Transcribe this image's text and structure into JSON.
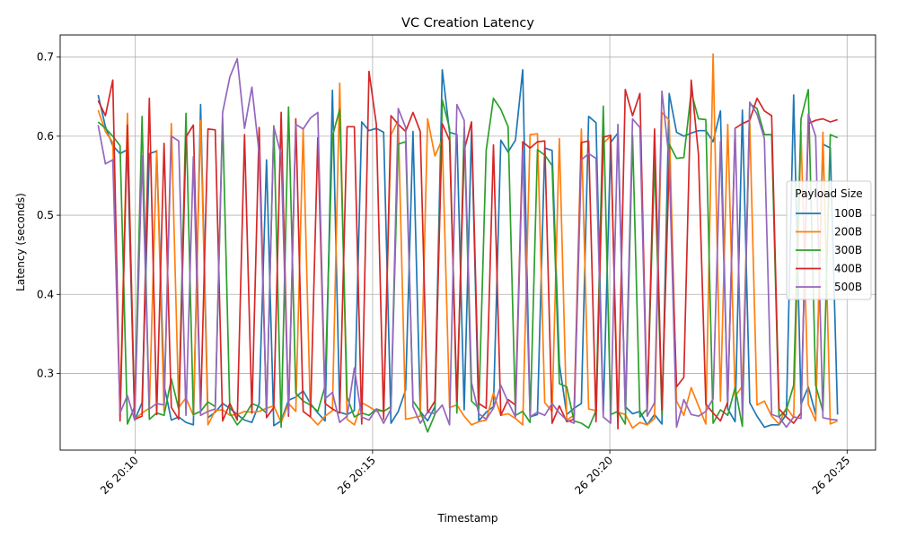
{
  "chart_data": {
    "type": "line",
    "title": "VC Creation Latency",
    "xlabel": "Timestamp",
    "ylabel": "Latency (seconds)",
    "x_start": "26 20:09:13",
    "x_end": "26 20:24:48",
    "xlim": [
      "26 20:08:25",
      "26 20:25:36"
    ],
    "ylim": [
      0.203,
      0.728
    ],
    "x_ticks": [
      {
        "label": "26 20:10",
        "time": "26 20:10:00"
      },
      {
        "label": "26 20:15",
        "time": "26 20:15:00"
      },
      {
        "label": "26 20:20",
        "time": "26 20:20:00"
      },
      {
        "label": "26 20:25",
        "time": "26 20:25:00"
      }
    ],
    "y_ticks": [
      0.3,
      0.4,
      0.5,
      0.6,
      0.7
    ],
    "grid": true,
    "legend": {
      "title": "Payload Size",
      "placement": "right"
    },
    "series": [
      {
        "name": "100B",
        "color": "#1f77b4",
        "values": [
          0.652,
          0.612,
          0.588,
          0.578,
          0.583,
          0.241,
          0.263,
          0.578,
          0.581,
          0.285,
          0.241,
          0.245,
          0.238,
          0.235,
          0.64,
          0.244,
          0.251,
          0.262,
          0.256,
          0.248,
          0.241,
          0.238,
          0.262,
          0.57,
          0.234,
          0.24,
          0.266,
          0.27,
          0.278,
          0.262,
          0.25,
          0.24,
          0.658,
          0.251,
          0.248,
          0.253,
          0.618,
          0.607,
          0.61,
          0.605,
          0.237,
          0.252,
          0.279,
          0.606,
          0.252,
          0.24,
          0.258,
          0.684,
          0.605,
          0.602,
          0.254,
          0.609,
          0.24,
          0.251,
          0.258,
          0.595,
          0.58,
          0.595,
          0.684,
          0.245,
          0.248,
          0.585,
          0.582,
          0.312,
          0.248,
          0.256,
          0.262,
          0.625,
          0.617,
          0.248,
          0.592,
          0.604,
          0.258,
          0.249,
          0.252,
          0.235,
          0.248,
          0.236,
          0.654,
          0.605,
          0.6,
          0.604,
          0.607,
          0.607,
          0.593,
          0.632,
          0.255,
          0.239,
          0.633,
          0.263,
          0.246,
          0.232,
          0.235,
          0.235,
          0.248,
          0.652,
          0.261,
          0.283,
          0.248,
          0.59,
          0.585,
          0.248
        ]
      },
      {
        "name": "200B",
        "color": "#ff7f0e",
        "values": [
          0.633,
          0.606,
          0.592,
          0.258,
          0.629,
          0.242,
          0.25,
          0.256,
          0.582,
          0.252,
          0.616,
          0.257,
          0.269,
          0.247,
          0.62,
          0.235,
          0.253,
          0.254,
          0.247,
          0.248,
          0.252,
          0.251,
          0.252,
          0.256,
          0.259,
          0.238,
          0.262,
          0.252,
          0.609,
          0.245,
          0.235,
          0.246,
          0.253,
          0.667,
          0.242,
          0.235,
          0.263,
          0.258,
          0.252,
          0.253,
          0.602,
          0.62,
          0.242,
          0.244,
          0.246,
          0.622,
          0.575,
          0.596,
          0.257,
          0.26,
          0.246,
          0.235,
          0.239,
          0.241,
          0.275,
          0.247,
          0.249,
          0.243,
          0.235,
          0.602,
          0.603,
          0.263,
          0.252,
          0.597,
          0.241,
          0.247,
          0.609,
          0.255,
          0.253,
          0.591,
          0.6,
          0.251,
          0.248,
          0.231,
          0.238,
          0.235,
          0.243,
          0.63,
          0.62,
          0.265,
          0.247,
          0.282,
          0.259,
          0.236,
          0.704,
          0.265,
          0.615,
          0.271,
          0.284,
          0.617,
          0.26,
          0.265,
          0.246,
          0.236,
          0.257,
          0.244,
          0.607,
          0.261,
          0.24,
          0.605,
          0.236,
          0.24
        ]
      },
      {
        "name": "300B",
        "color": "#2ca02c",
        "values": [
          0.618,
          0.61,
          0.6,
          0.588,
          0.236,
          0.258,
          0.625,
          0.242,
          0.25,
          0.247,
          0.293,
          0.255,
          0.629,
          0.248,
          0.252,
          0.264,
          0.258,
          0.623,
          0.25,
          0.235,
          0.246,
          0.262,
          0.258,
          0.25,
          0.613,
          0.232,
          0.637,
          0.275,
          0.265,
          0.26,
          0.252,
          0.284,
          0.6,
          0.634,
          0.27,
          0.245,
          0.25,
          0.247,
          0.255,
          0.252,
          0.258,
          0.59,
          0.593,
          0.265,
          0.252,
          0.226,
          0.248,
          0.646,
          0.61,
          0.25,
          0.611,
          0.265,
          0.256,
          0.582,
          0.648,
          0.634,
          0.612,
          0.247,
          0.252,
          0.238,
          0.583,
          0.576,
          0.563,
          0.287,
          0.283,
          0.24,
          0.237,
          0.231,
          0.253,
          0.638,
          0.248,
          0.252,
          0.236,
          0.601,
          0.245,
          0.255,
          0.571,
          0.247,
          0.59,
          0.572,
          0.573,
          0.656,
          0.622,
          0.621,
          0.237,
          0.254,
          0.247,
          0.282,
          0.233,
          0.641,
          0.635,
          0.602,
          0.602,
          0.245,
          0.254,
          0.285,
          0.622,
          0.659,
          0.285,
          0.252,
          0.602,
          0.598
        ]
      },
      {
        "name": "400B",
        "color": "#d62728",
        "values": [
          0.645,
          0.626,
          0.671,
          0.24,
          0.614,
          0.242,
          0.246,
          0.648,
          0.248,
          0.591,
          0.257,
          0.242,
          0.599,
          0.614,
          0.253,
          0.609,
          0.608,
          0.24,
          0.262,
          0.241,
          0.602,
          0.25,
          0.611,
          0.244,
          0.257,
          0.63,
          0.246,
          0.622,
          0.252,
          0.245,
          0.598,
          0.262,
          0.255,
          0.25,
          0.612,
          0.612,
          0.236,
          0.682,
          0.615,
          0.242,
          0.626,
          0.615,
          0.606,
          0.63,
          0.606,
          0.25,
          0.265,
          0.616,
          0.595,
          0.265,
          0.582,
          0.618,
          0.262,
          0.256,
          0.589,
          0.247,
          0.267,
          0.26,
          0.593,
          0.585,
          0.593,
          0.594,
          0.237,
          0.259,
          0.239,
          0.242,
          0.592,
          0.594,
          0.239,
          0.599,
          0.601,
          0.23,
          0.659,
          0.626,
          0.654,
          0.252,
          0.609,
          0.254,
          0.567,
          0.283,
          0.295,
          0.671,
          0.577,
          0.261,
          0.25,
          0.24,
          0.264,
          0.61,
          0.616,
          0.62,
          0.648,
          0.632,
          0.626,
          0.255,
          0.245,
          0.237,
          0.25,
          0.616,
          0.62,
          0.622,
          0.618,
          0.621
        ]
      },
      {
        "name": "500B",
        "color": "#9467bd",
        "values": [
          0.614,
          0.565,
          0.57,
          0.25,
          0.272,
          0.241,
          0.575,
          0.255,
          0.262,
          0.26,
          0.6,
          0.594,
          0.247,
          0.574,
          0.247,
          0.252,
          0.255,
          0.63,
          0.675,
          0.698,
          0.61,
          0.662,
          0.578,
          0.25,
          0.612,
          0.576,
          0.25,
          0.615,
          0.609,
          0.623,
          0.63,
          0.268,
          0.276,
          0.238,
          0.246,
          0.307,
          0.245,
          0.241,
          0.255,
          0.237,
          0.255,
          0.635,
          0.611,
          0.258,
          0.237,
          0.251,
          0.249,
          0.26,
          0.235,
          0.64,
          0.62,
          0.288,
          0.249,
          0.242,
          0.256,
          0.285,
          0.264,
          0.245,
          0.582,
          0.245,
          0.251,
          0.247,
          0.262,
          0.25,
          0.241,
          0.237,
          0.57,
          0.578,
          0.572,
          0.245,
          0.237,
          0.615,
          0.254,
          0.622,
          0.611,
          0.246,
          0.263,
          0.657,
          0.57,
          0.232,
          0.267,
          0.248,
          0.246,
          0.252,
          0.268,
          0.593,
          0.264,
          0.61,
          0.246,
          0.643,
          0.628,
          0.597,
          0.248,
          0.245,
          0.232,
          0.245,
          0.243,
          0.628,
          0.6,
          0.244,
          0.242,
          0.241
        ]
      }
    ]
  }
}
